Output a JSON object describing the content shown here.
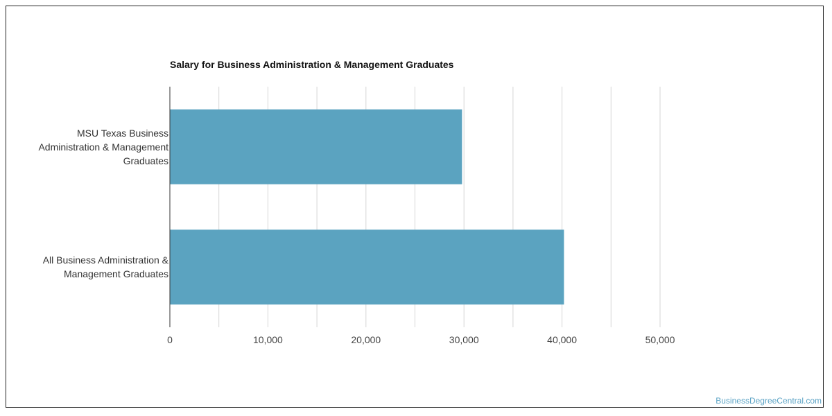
{
  "chart_data": {
    "type": "bar",
    "orientation": "horizontal",
    "title": "Salary for Business Administration & Management Graduates",
    "categories": [
      "MSU Texas Business Administration & Management Graduates",
      "All Business Administration & Management Graduates"
    ],
    "category_lines": [
      [
        "MSU Texas Business",
        "Administration & Management",
        "Graduates"
      ],
      [
        "All Business Administration &",
        "Management Graduates"
      ]
    ],
    "values": [
      29800,
      40200
    ],
    "xlim": [
      0,
      50000
    ],
    "xticks": [
      0,
      10000,
      20000,
      30000,
      40000,
      50000
    ],
    "xtick_labels": [
      "0",
      "10,000",
      "20,000",
      "30,000",
      "40,000",
      "50,000"
    ],
    "grid": true,
    "bar_color": "#5ba3c0",
    "xlabel": "",
    "ylabel": ""
  },
  "watermark": "BusinessDegreeCentral.com"
}
